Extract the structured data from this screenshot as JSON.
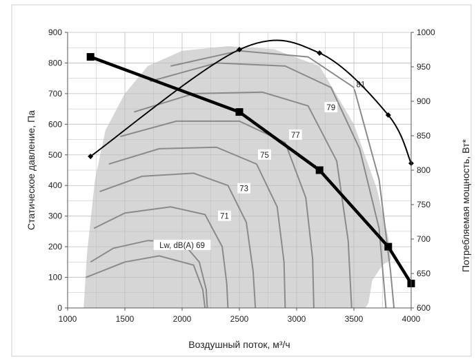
{
  "chart_data": {
    "type": "line",
    "xlabel": "Воздушный поток, м³/ч",
    "ylabel": "Статическое давление, Па",
    "y2label": "Потребляемая мощность, Вт*",
    "xlim": [
      1000,
      4000
    ],
    "ylim": [
      0,
      900
    ],
    "y2lim": [
      600,
      1000
    ],
    "x_ticks": [
      "1000",
      "1500",
      "2000",
      "2500",
      "3000",
      "3500",
      "4000"
    ],
    "y_ticks": [
      "0",
      "100",
      "200",
      "300",
      "400",
      "500",
      "600",
      "700",
      "800",
      "900"
    ],
    "y2_ticks": [
      "600",
      "650",
      "700",
      "750",
      "800",
      "850",
      "900",
      "950",
      "1000"
    ],
    "grid": true,
    "series": [
      {
        "role": "pressure-curve",
        "axis": "left",
        "x": [
          1200,
          2500,
          3200,
          3800,
          4000
        ],
        "y": [
          820,
          640,
          450,
          200,
          80
        ],
        "color": "#000000"
      },
      {
        "role": "power-curve",
        "axis": "right",
        "x": [
          1200,
          2500,
          3200,
          3800,
          4000
        ],
        "y": [
          820,
          975,
          970,
          880,
          810
        ],
        "color": "#000000"
      }
    ],
    "sound_contours": [
      {
        "label": "Lw, dB(A) 69",
        "label_x": 2000,
        "label_y": 205
      },
      {
        "label": "71",
        "label_x": 2370,
        "label_y": 300
      },
      {
        "label": "73",
        "label_x": 2540,
        "label_y": 390
      },
      {
        "label": "75",
        "label_x": 2720,
        "label_y": 500
      },
      {
        "label": "77",
        "label_x": 2990,
        "label_y": 565
      },
      {
        "label": "79",
        "label_x": 3300,
        "label_y": 655
      },
      {
        "label": "81",
        "label_x": 3560,
        "label_y": 730
      }
    ],
    "colors": {
      "region": "#d6d6d6",
      "contour": "#8a8a8a",
      "curve": "#000000",
      "grid": "#bdbdbd"
    }
  }
}
